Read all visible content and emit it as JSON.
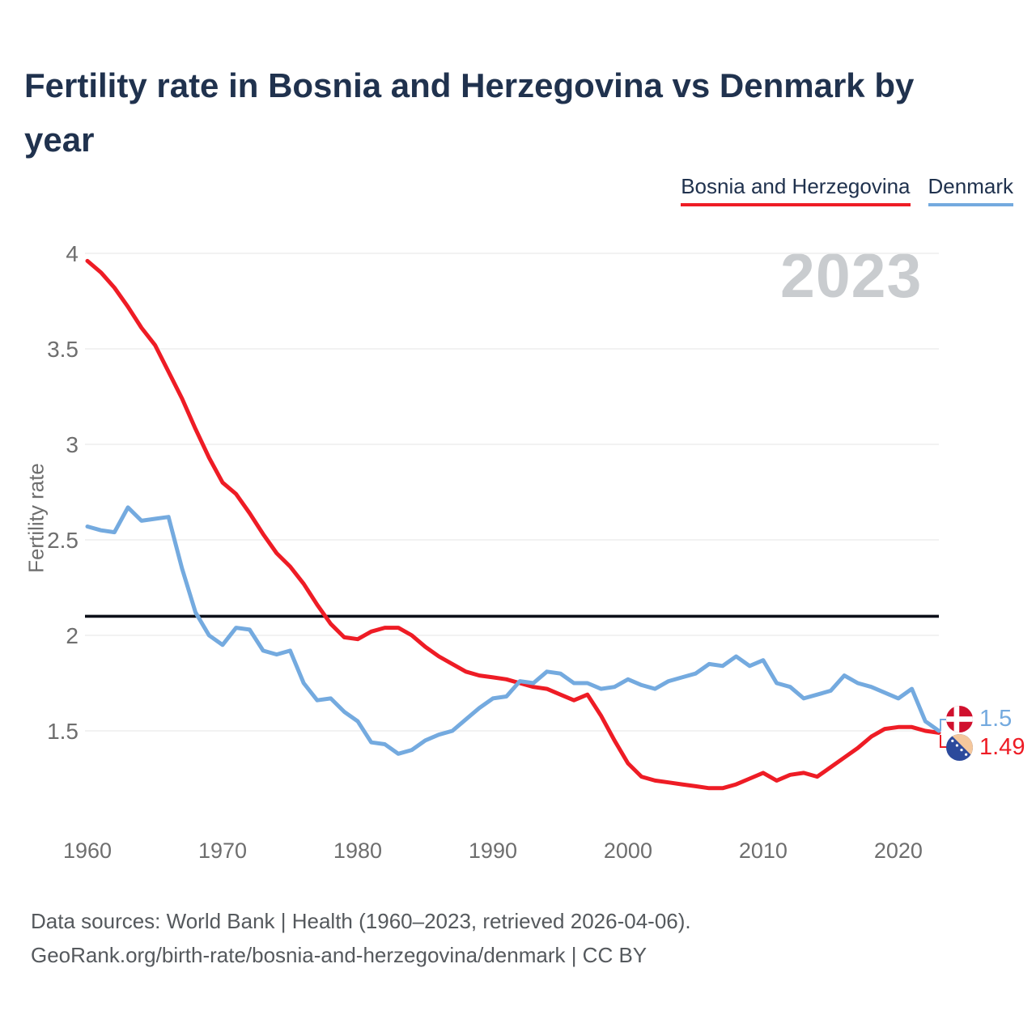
{
  "header": {
    "title": "Fertility rate in Bosnia and Herzegovina vs Denmark by year"
  },
  "legend": {
    "items": [
      {
        "label": "Bosnia and Herzegovina",
        "color": "#ee1c25"
      },
      {
        "label": "Denmark",
        "color": "#74aadf"
      }
    ]
  },
  "watermark": "2023",
  "chart_data": {
    "type": "line",
    "title": "Fertility rate in Bosnia and Herzegovina vs Denmark by year",
    "xlabel": "",
    "ylabel": "Fertility rate",
    "x_range": [
      1960,
      2023
    ],
    "x_ticks": [
      1960,
      1970,
      1980,
      1990,
      2000,
      2010,
      2020
    ],
    "y_ticks": [
      1.5,
      2,
      2.5,
      3,
      3.5,
      4
    ],
    "ylim": [
      1.15,
      4.05
    ],
    "grid": true,
    "legend_position": "top-right",
    "reference_line": {
      "value": 2.1,
      "color": "#0b0f19"
    },
    "years": [
      1960,
      1961,
      1962,
      1963,
      1964,
      1965,
      1966,
      1967,
      1968,
      1969,
      1970,
      1971,
      1972,
      1973,
      1974,
      1975,
      1976,
      1977,
      1978,
      1979,
      1980,
      1981,
      1982,
      1983,
      1984,
      1985,
      1986,
      1987,
      1988,
      1989,
      1990,
      1991,
      1992,
      1993,
      1994,
      1995,
      1996,
      1997,
      1998,
      1999,
      2000,
      2001,
      2002,
      2003,
      2004,
      2005,
      2006,
      2007,
      2008,
      2009,
      2010,
      2011,
      2012,
      2013,
      2014,
      2015,
      2016,
      2017,
      2018,
      2019,
      2020,
      2021,
      2022,
      2023
    ],
    "series": [
      {
        "name": "Bosnia and Herzegovina",
        "color": "#ee1c25",
        "end_label": "1.49",
        "values": [
          3.96,
          3.9,
          3.82,
          3.72,
          3.61,
          3.52,
          3.38,
          3.24,
          3.08,
          2.93,
          2.8,
          2.74,
          2.64,
          2.53,
          2.43,
          2.36,
          2.27,
          2.16,
          2.06,
          1.99,
          1.98,
          2.02,
          2.04,
          2.04,
          2.0,
          1.94,
          1.89,
          1.85,
          1.81,
          1.79,
          1.78,
          1.77,
          1.75,
          1.73,
          1.72,
          1.69,
          1.66,
          1.69,
          1.58,
          1.45,
          1.33,
          1.26,
          1.24,
          1.23,
          1.22,
          1.21,
          1.2,
          1.2,
          1.22,
          1.25,
          1.28,
          1.24,
          1.27,
          1.28,
          1.26,
          1.31,
          1.36,
          1.41,
          1.47,
          1.51,
          1.52,
          1.52,
          1.5,
          1.49
        ]
      },
      {
        "name": "Denmark",
        "color": "#74aadf",
        "end_label": "1.5",
        "values": [
          2.57,
          2.55,
          2.54,
          2.67,
          2.6,
          2.61,
          2.62,
          2.35,
          2.12,
          2.0,
          1.95,
          2.04,
          2.03,
          1.92,
          1.9,
          1.92,
          1.75,
          1.66,
          1.67,
          1.6,
          1.55,
          1.44,
          1.43,
          1.38,
          1.4,
          1.45,
          1.48,
          1.5,
          1.56,
          1.62,
          1.67,
          1.68,
          1.76,
          1.75,
          1.81,
          1.8,
          1.75,
          1.75,
          1.72,
          1.73,
          1.77,
          1.74,
          1.72,
          1.76,
          1.78,
          1.8,
          1.85,
          1.84,
          1.89,
          1.84,
          1.87,
          1.75,
          1.73,
          1.67,
          1.69,
          1.71,
          1.79,
          1.75,
          1.73,
          1.7,
          1.67,
          1.72,
          1.55,
          1.5
        ]
      }
    ]
  },
  "end_labels": {
    "denmark": {
      "value": "1.5"
    },
    "bosnia": {
      "value": "1.49"
    }
  },
  "footer": {
    "line1": "Data sources: World Bank | Health (1960–2023, retrieved 2026-04-06).",
    "line2": "GeoRank.org/birth-rate/bosnia-and-herzegovina/denmark | CC BY"
  }
}
